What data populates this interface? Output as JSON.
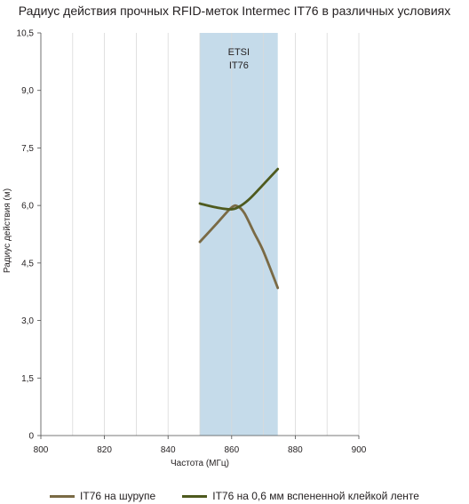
{
  "chart_data": {
    "type": "line",
    "title": "Радиус действия прочных RFID-меток Intermec IT76 в различных условиях",
    "xlabel": "Частота (МГц)",
    "ylabel": "Радиус действия (м)",
    "xlim": [
      800,
      900
    ],
    "ylim": [
      0,
      10.5
    ],
    "xticks": [
      "800",
      "820",
      "840",
      "860",
      "880",
      "900"
    ],
    "yticks": [
      "0",
      "1,5",
      "3,0",
      "4,5",
      "6,0",
      "7,5",
      "9,0",
      "10,5"
    ],
    "grid": "vertical",
    "legend_position": "bottom",
    "band": {
      "x_start": 850,
      "x_end": 874.5,
      "label_lines": [
        "ETSI",
        "IT76"
      ],
      "color": "#c5dbea"
    },
    "series": [
      {
        "name": "IT76 на шурупе",
        "color": "#7a6a45",
        "x": [
          850,
          855,
          860,
          862,
          864,
          867,
          870,
          874.5
        ],
        "y": [
          5.05,
          5.5,
          5.95,
          5.97,
          5.8,
          5.3,
          4.8,
          3.85
        ]
      },
      {
        "name": "IT76 на 0,6 мм вспененной клейкой ленте",
        "color": "#4e5a1e",
        "x": [
          850,
          855,
          860,
          863,
          866,
          870,
          874.5
        ],
        "y": [
          6.05,
          5.95,
          5.9,
          6.0,
          6.2,
          6.55,
          6.95
        ]
      }
    ]
  }
}
